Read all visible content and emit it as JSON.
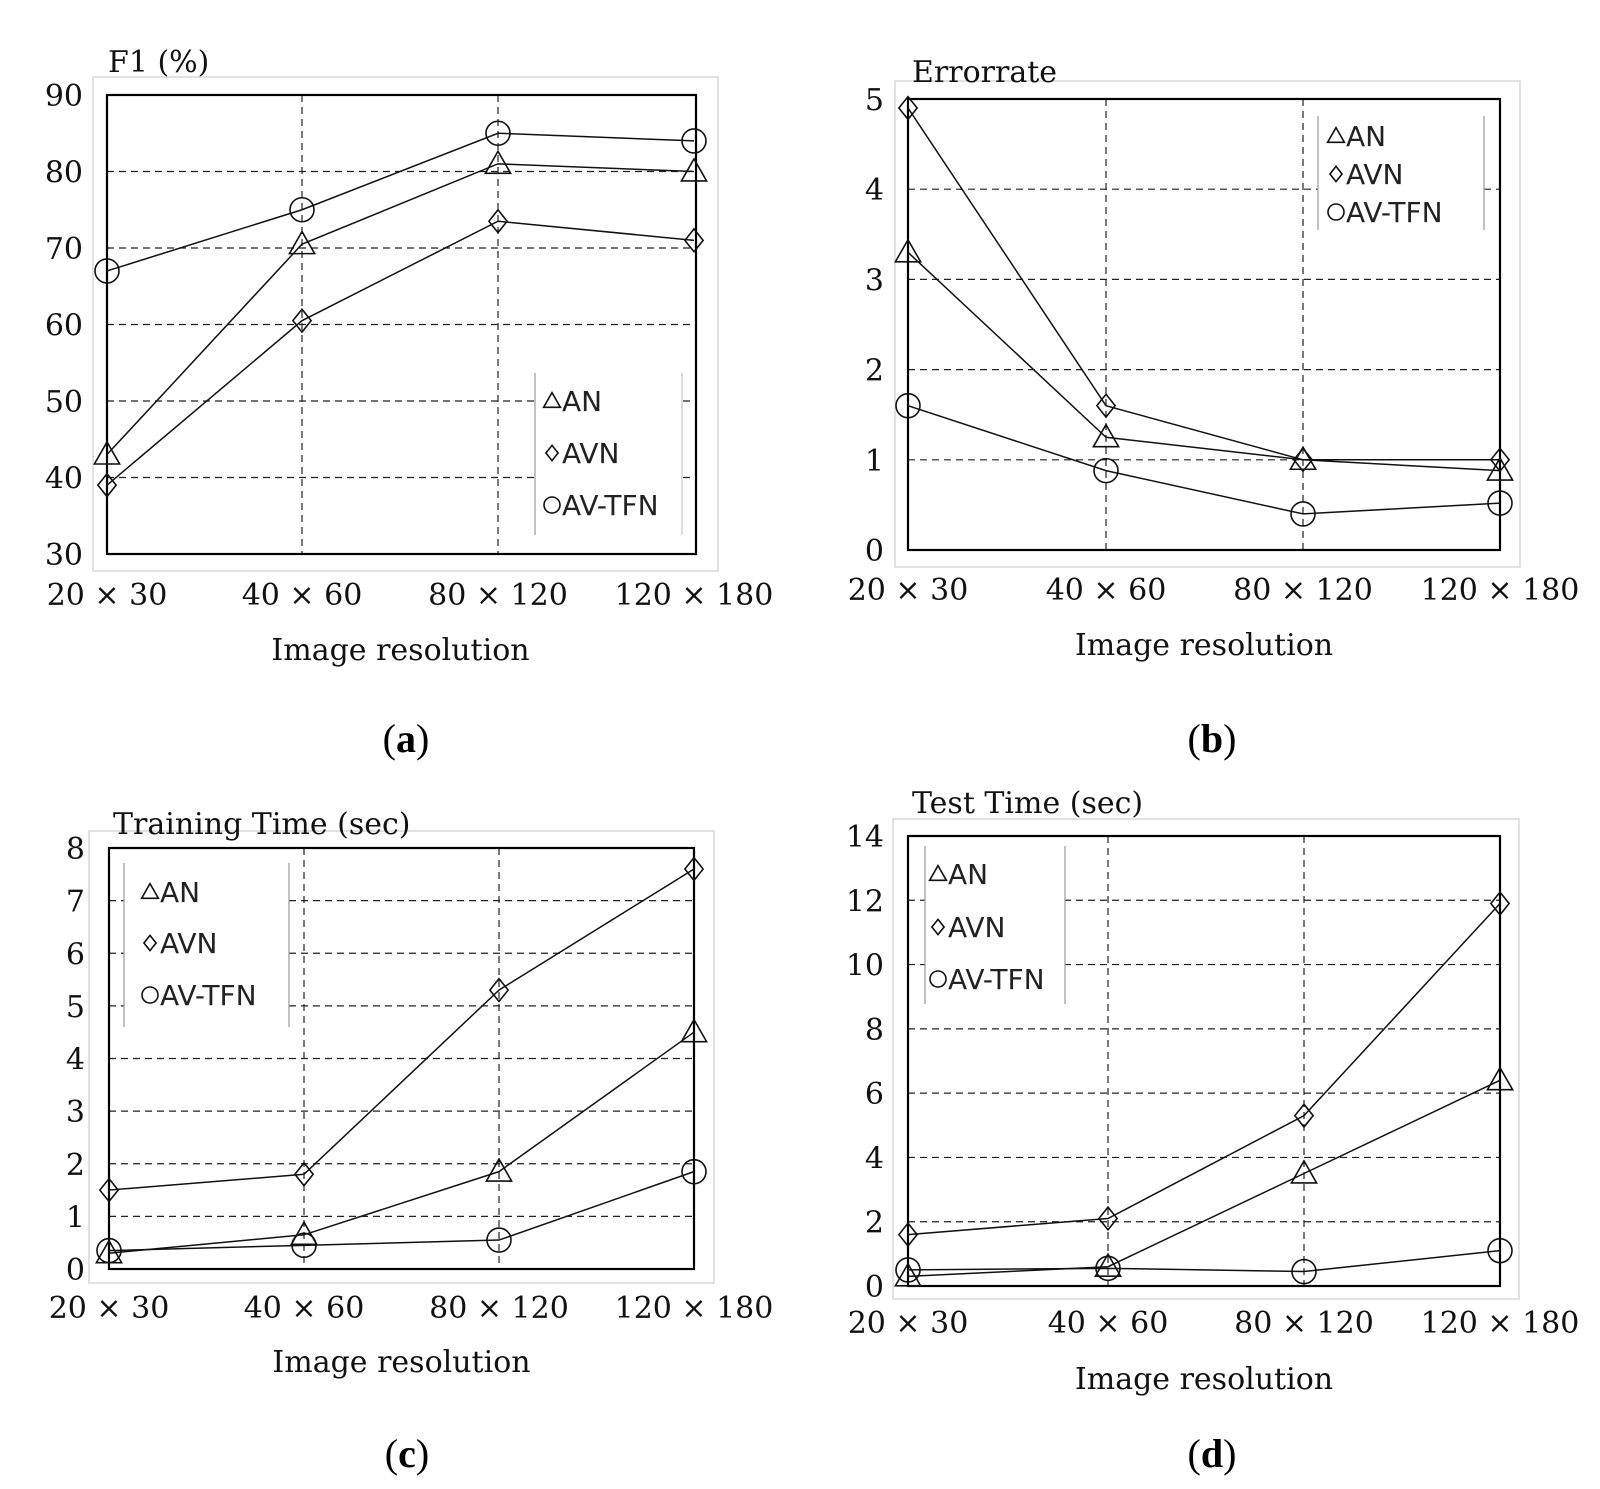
{
  "chart_data": [
    {
      "id": "a",
      "type": "line",
      "title": "F1 (%)",
      "xlabel": "Image resolution",
      "ylabel": "F1 (%)",
      "caption": "a",
      "categories": [
        "20 × 30",
        "40 × 60",
        "80 × 120",
        "120 × 180"
      ],
      "ylim": [
        30,
        90
      ],
      "yticks": [
        30,
        40,
        50,
        60,
        70,
        80,
        90
      ],
      "legend_position": "bottom-right",
      "series": [
        {
          "name": "AN",
          "marker": "triangle",
          "values": [
            43,
            70.5,
            81,
            80
          ]
        },
        {
          "name": "AVN",
          "marker": "diamond",
          "values": [
            39,
            60.5,
            73.5,
            71
          ]
        },
        {
          "name": "AV-TFN",
          "marker": "circle",
          "values": [
            67,
            75,
            85,
            84
          ]
        }
      ]
    },
    {
      "id": "b",
      "type": "line",
      "title": "Errorrate",
      "xlabel": "Image resolution",
      "ylabel": "Errorrate",
      "caption": "b",
      "categories": [
        "20 × 30",
        "40 × 60",
        "80 × 120",
        "120 × 180"
      ],
      "ylim": [
        0,
        5
      ],
      "yticks": [
        0,
        1,
        2,
        3,
        4,
        5
      ],
      "legend_position": "top-right",
      "series": [
        {
          "name": "AN",
          "marker": "triangle",
          "values": [
            3.3,
            1.25,
            1.0,
            0.88
          ]
        },
        {
          "name": "AVN",
          "marker": "diamond",
          "values": [
            4.9,
            1.6,
            1.0,
            1.0
          ]
        },
        {
          "name": "AV-TFN",
          "marker": "circle",
          "values": [
            1.6,
            0.88,
            0.4,
            0.52
          ]
        }
      ]
    },
    {
      "id": "c",
      "type": "line",
      "title": "Training Time (sec)",
      "xlabel": "Image resolution",
      "ylabel": "Training Time (sec)",
      "caption": "c",
      "categories": [
        "20 × 30",
        "40 × 60",
        "80 × 120",
        "120 × 180"
      ],
      "ylim": [
        0,
        8
      ],
      "yticks": [
        0,
        1,
        2,
        3,
        4,
        5,
        6,
        7,
        8
      ],
      "legend_position": "top-left",
      "series": [
        {
          "name": "AN",
          "marker": "triangle",
          "values": [
            0.3,
            0.65,
            1.85,
            4.5
          ]
        },
        {
          "name": "AVN",
          "marker": "diamond",
          "values": [
            1.5,
            1.8,
            5.3,
            7.6
          ]
        },
        {
          "name": "AV-TFN",
          "marker": "circle",
          "values": [
            0.35,
            0.45,
            0.55,
            1.85
          ]
        }
      ]
    },
    {
      "id": "d",
      "type": "line",
      "title": "Test Time (sec)",
      "xlabel": "Image resolution",
      "ylabel": "Test Time (sec)",
      "caption": "d",
      "categories": [
        "20 × 30",
        "40 × 60",
        "80 × 120",
        "120 × 180"
      ],
      "ylim": [
        0,
        14
      ],
      "yticks": [
        0,
        2,
        4,
        6,
        8,
        10,
        12,
        14
      ],
      "legend_position": "top-left",
      "series": [
        {
          "name": "AN",
          "marker": "triangle",
          "values": [
            0.3,
            0.6,
            3.5,
            6.4
          ]
        },
        {
          "name": "AVN",
          "marker": "diamond",
          "values": [
            1.6,
            2.1,
            5.3,
            11.9
          ]
        },
        {
          "name": "AV-TFN",
          "marker": "circle",
          "values": [
            0.5,
            0.55,
            0.45,
            1.1
          ]
        }
      ]
    }
  ]
}
